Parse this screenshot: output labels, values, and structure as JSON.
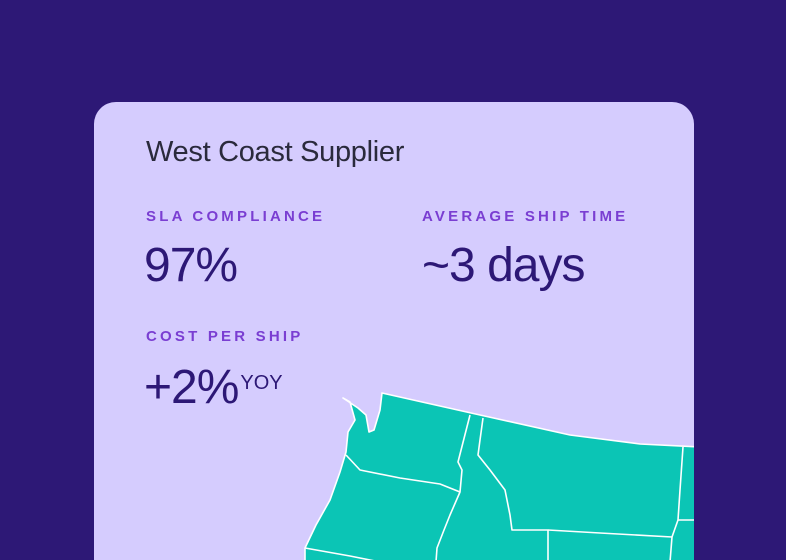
{
  "card": {
    "title": "West Coast Supplier",
    "metrics": [
      {
        "label": "SLA COMPLIANCE",
        "value": "97%"
      },
      {
        "label": "AVERAGE SHIP TIME",
        "value": "~3 days"
      },
      {
        "label": "COST PER SHIP",
        "value": "+2%",
        "suffix": "YOY"
      }
    ]
  }
}
